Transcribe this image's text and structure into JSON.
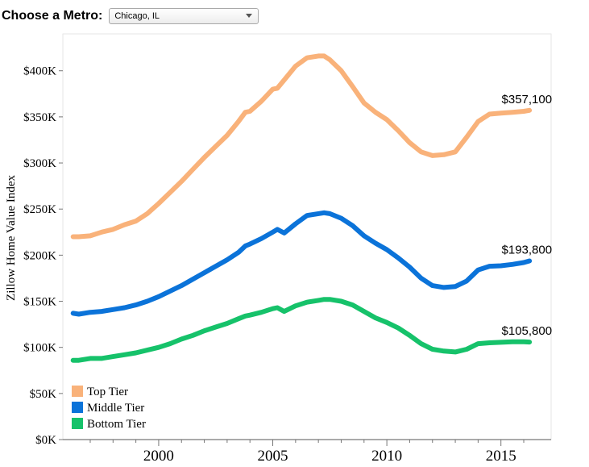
{
  "metro_selector": {
    "label": "Choose a Metro:",
    "selected": "Chicago, IL"
  },
  "chart_data": {
    "type": "line",
    "title": "",
    "xlabel": "",
    "ylabel": "Zillow Home Value Index",
    "xlim": [
      1995.8,
      2017.2
    ],
    "ylim": [
      0,
      440000
    ],
    "x_ticks": [
      2000,
      2005,
      2010,
      2015
    ],
    "y_ticks": [
      0,
      50000,
      100000,
      150000,
      200000,
      250000,
      300000,
      350000,
      400000
    ],
    "y_tick_labels": [
      "$0K",
      "$50K",
      "$100K",
      "$150K",
      "$200K",
      "$250K",
      "$300K",
      "$350K",
      "$400K"
    ],
    "grid": false,
    "legend_position": "bottom-left",
    "x": [
      1996.25,
      1996.5,
      1997,
      1997.5,
      1998,
      1998.5,
      1999,
      1999.5,
      2000,
      2000.5,
      2001,
      2001.5,
      2002,
      2002.5,
      2003,
      2003.5,
      2003.8,
      2004,
      2004.5,
      2005,
      2005.2,
      2005.5,
      2006,
      2006.5,
      2007,
      2007.25,
      2007.5,
      2008,
      2008.5,
      2009,
      2009.5,
      2010,
      2010.5,
      2011,
      2011.5,
      2012,
      2012.5,
      2013,
      2013.5,
      2014,
      2014.5,
      2015,
      2015.5,
      2016,
      2016.25
    ],
    "series": [
      {
        "name": "Top Tier",
        "color": "#f9b27a",
        "end_label": "$357,100",
        "values": [
          220000,
          220000,
          221000,
          225000,
          228000,
          233000,
          237000,
          245000,
          256000,
          268000,
          280000,
          293000,
          306000,
          318000,
          330000,
          345000,
          355000,
          356000,
          367000,
          380000,
          381000,
          390000,
          405000,
          414000,
          416000,
          416000,
          412000,
          400000,
          383000,
          365000,
          355000,
          347000,
          335000,
          322000,
          312000,
          308000,
          309000,
          312000,
          328000,
          345000,
          353000,
          354000,
          355000,
          356000,
          357100
        ]
      },
      {
        "name": "Middle Tier",
        "color": "#0b73d9",
        "end_label": "$193,800",
        "values": [
          137000,
          136000,
          138000,
          139000,
          141000,
          143000,
          146000,
          150000,
          155000,
          161000,
          167000,
          174000,
          181000,
          188000,
          195000,
          203000,
          210000,
          212000,
          218000,
          225000,
          228000,
          224000,
          234000,
          243000,
          245000,
          246000,
          245000,
          240000,
          232000,
          221000,
          213000,
          206000,
          197000,
          187000,
          175000,
          167000,
          165000,
          166000,
          172000,
          184000,
          188000,
          188500,
          190000,
          192000,
          193800
        ]
      },
      {
        "name": "Bottom Tier",
        "color": "#16c26a",
        "end_label": "$105,800",
        "values": [
          86000,
          86000,
          88000,
          88000,
          90000,
          92000,
          94000,
          97000,
          100000,
          104000,
          109000,
          113000,
          118000,
          122000,
          126000,
          131000,
          134000,
          135000,
          138000,
          142000,
          143000,
          139000,
          145000,
          149000,
          151000,
          152000,
          152000,
          150000,
          146000,
          139000,
          132000,
          127000,
          121000,
          113000,
          104000,
          98000,
          96000,
          95000,
          98000,
          104000,
          105000,
          105500,
          106000,
          106000,
          105800
        ]
      }
    ]
  }
}
